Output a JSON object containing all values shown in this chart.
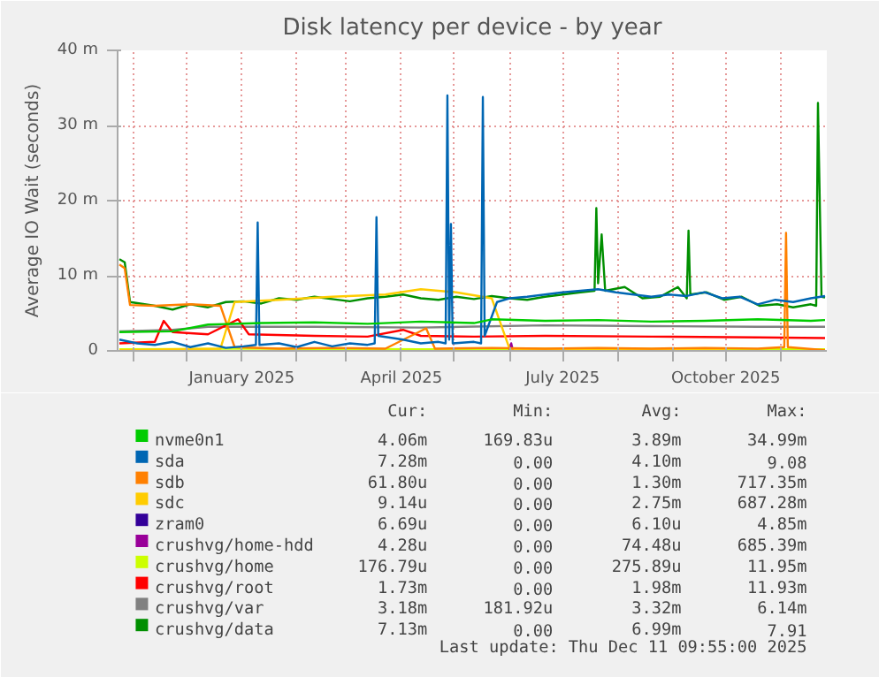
{
  "chart_data": {
    "type": "line",
    "title": "Disk latency per device - by year",
    "ylabel": "Average IO Wait (seconds)",
    "xlim": [
      "2024-10-23",
      "2025-11-27"
    ],
    "xticks": [
      {
        "value": "2024-11-01",
        "label": null
      },
      {
        "value": "2024-12-01",
        "label": null
      },
      {
        "value": "2025-01-01",
        "label": "January 2025"
      },
      {
        "value": "2025-02-01",
        "label": null
      },
      {
        "value": "2025-03-01",
        "label": null
      },
      {
        "value": "2025-04-01",
        "label": "April 2025"
      },
      {
        "value": "2025-05-01",
        "label": null
      },
      {
        "value": "2025-06-01",
        "label": null
      },
      {
        "value": "2025-07-01",
        "label": "July 2025"
      },
      {
        "value": "2025-08-01",
        "label": null
      },
      {
        "value": "2025-09-01",
        "label": null
      },
      {
        "value": "2025-10-01",
        "label": "October 2025"
      },
      {
        "value": "2025-11-01",
        "label": null
      }
    ],
    "ylim": [
      0,
      40
    ],
    "yticks": [
      0,
      {
        "value": 10,
        "label": "10 m"
      },
      {
        "value": 20,
        "label": "20 m"
      },
      {
        "value": 30,
        "label": "30 m"
      },
      {
        "value": 40,
        "label": "40 m"
      }
    ],
    "grid": true,
    "legend": "bottom",
    "line_style": "solid",
    "series": [
      {
        "name": "nvme0n1",
        "color": "#00cc00",
        "x": [
          "2024-10-24",
          "2024-11-23",
          "2024-12-13",
          "2025-01-12",
          "2025-02-11",
          "2025-03-13",
          "2025-04-12",
          "2025-05-12",
          "2025-05-22",
          "2025-06-21",
          "2025-07-21",
          "2025-08-20",
          "2025-09-19",
          "2025-10-19",
          "2025-11-18",
          "2025-11-26"
        ],
        "values": [
          2.5,
          2.6,
          3.5,
          3.7,
          3.8,
          3.6,
          3.9,
          3.7,
          4.2,
          4.0,
          4.1,
          3.9,
          4.0,
          4.2,
          4.0,
          4.1
        ]
      },
      {
        "name": "sda",
        "color": "#0066b3",
        "x": [
          "2024-10-24",
          "2024-11-03",
          "2024-11-13",
          "2024-11-23",
          "2024-12-03",
          "2024-12-13",
          "2024-12-23",
          "2025-01-02",
          "2025-01-09",
          "2025-01-10",
          "2025-01-11",
          "2025-01-22",
          "2025-02-01",
          "2025-02-11",
          "2025-02-21",
          "2025-03-03",
          "2025-03-13",
          "2025-03-17",
          "2025-03-18",
          "2025-03-19",
          "2025-04-02",
          "2025-04-12",
          "2025-04-22",
          "2025-04-26",
          "2025-04-27",
          "2025-04-28",
          "2025-04-29",
          "2025-04-30",
          "2025-05-12",
          "2025-05-16",
          "2025-05-17",
          "2025-05-18",
          "2025-05-25",
          "2025-06-01",
          "2025-06-11",
          "2025-06-21",
          "2025-07-01",
          "2025-07-11",
          "2025-07-21",
          "2025-07-31",
          "2025-08-10",
          "2025-08-20",
          "2025-08-30",
          "2025-09-09",
          "2025-09-19",
          "2025-09-29",
          "2025-10-09",
          "2025-10-19",
          "2025-10-29",
          "2025-11-08",
          "2025-11-18",
          "2025-11-26"
        ],
        "values": [
          1.5,
          1.0,
          0.8,
          1.2,
          0.5,
          1.0,
          0.4,
          0.6,
          0.8,
          17.1,
          0.8,
          1.0,
          0.5,
          1.2,
          0.6,
          1.0,
          0.8,
          1.0,
          17.8,
          2.0,
          1.5,
          1.0,
          1.2,
          1.0,
          34.0,
          1.5,
          16.9,
          1.0,
          1.2,
          1.0,
          33.8,
          2.0,
          6.5,
          7.0,
          7.2,
          7.5,
          7.8,
          8.0,
          8.2,
          7.8,
          7.5,
          7.2,
          7.5,
          7.3,
          7.8,
          7.0,
          7.2,
          6.2,
          6.8,
          6.5,
          7.0,
          7.3
        ]
      },
      {
        "name": "sdb",
        "color": "#ff8000",
        "x": [
          "2024-10-24",
          "2024-10-27",
          "2024-10-30",
          "2024-11-13",
          "2024-12-03",
          "2024-12-20",
          "2024-12-28",
          "2025-01-22",
          "2025-02-21",
          "2025-03-23",
          "2025-04-15",
          "2025-04-20",
          "2025-05-22",
          "2025-06-21",
          "2025-07-21",
          "2025-08-20",
          "2025-09-19",
          "2025-10-19",
          "2025-11-03",
          "2025-11-04",
          "2025-11-05",
          "2025-11-26"
        ],
        "values": [
          11.5,
          11.0,
          6.1,
          6.0,
          6.2,
          6.0,
          0.5,
          0.3,
          0.4,
          0.3,
          3.0,
          0.3,
          0.4,
          0.3,
          0.4,
          0.3,
          0.4,
          0.3,
          0.5,
          15.7,
          0.5,
          0.1
        ]
      },
      {
        "name": "sdc",
        "color": "#ffcc00",
        "x": [
          "2024-10-24",
          "2024-11-23",
          "2024-12-20",
          "2024-12-28",
          "2025-01-22",
          "2025-02-21",
          "2025-03-23",
          "2025-04-12",
          "2025-05-02",
          "2025-05-22",
          "2025-06-01",
          "2025-07-01",
          "2025-08-01",
          "2025-09-01",
          "2025-10-01"
        ],
        "values": [
          0.1,
          0.2,
          0.3,
          6.5,
          6.8,
          7.2,
          7.5,
          8.2,
          7.8,
          7.0,
          0.3,
          0.2,
          0.2,
          0.1,
          0.1
        ]
      },
      {
        "name": "zram0",
        "color": "#330099"
      },
      {
        "name": "crushvg/home-hdd",
        "color": "#990099",
        "x": [
          "2025-06-01",
          "2025-06-02",
          "2025-06-03"
        ],
        "values": [
          0,
          1.0,
          0
        ]
      },
      {
        "name": "crushvg/home",
        "color": "#ccff00",
        "x": [
          "2024-10-24",
          "2025-01-12",
          "2025-04-12",
          "2025-07-21",
          "2025-10-19",
          "2025-11-26"
        ],
        "values": [
          0.2,
          0.3,
          0.2,
          0.3,
          0.2,
          0.2
        ]
      },
      {
        "name": "crushvg/root",
        "color": "#ff0000",
        "x": [
          "2024-10-24",
          "2024-11-13",
          "2024-11-18",
          "2024-11-23",
          "2024-12-13",
          "2024-12-30",
          "2025-01-05",
          "2025-02-11",
          "2025-03-13",
          "2025-04-02",
          "2025-04-12",
          "2025-05-12",
          "2025-06-21",
          "2025-08-20",
          "2025-10-19",
          "2025-11-26"
        ],
        "values": [
          1.0,
          1.2,
          4.0,
          2.5,
          2.2,
          4.2,
          2.2,
          2.0,
          1.9,
          2.8,
          2.0,
          1.9,
          2.0,
          1.9,
          1.8,
          1.7
        ]
      },
      {
        "name": "crushvg/var",
        "color": "#808080",
        "x": [
          "2024-10-24",
          "2024-11-23",
          "2024-12-13",
          "2025-02-11",
          "2025-04-12",
          "2025-06-21",
          "2025-08-20",
          "2025-10-19",
          "2025-11-26"
        ],
        "values": [
          2.6,
          2.8,
          3.2,
          3.2,
          3.1,
          3.4,
          3.3,
          3.2,
          3.2
        ]
      },
      {
        "name": "crushvg/data",
        "color": "#008f00",
        "x": [
          "2024-10-24",
          "2024-10-27",
          "2024-10-30",
          "2024-11-13",
          "2024-11-23",
          "2024-12-03",
          "2024-12-13",
          "2024-12-23",
          "2025-01-02",
          "2025-01-12",
          "2025-01-22",
          "2025-02-01",
          "2025-02-11",
          "2025-02-21",
          "2025-03-03",
          "2025-03-13",
          "2025-03-23",
          "2025-04-02",
          "2025-04-12",
          "2025-04-22",
          "2025-05-02",
          "2025-05-12",
          "2025-05-22",
          "2025-06-01",
          "2025-06-11",
          "2025-06-21",
          "2025-07-01",
          "2025-07-11",
          "2025-07-19",
          "2025-07-20",
          "2025-07-21",
          "2025-07-23",
          "2025-07-25",
          "2025-08-05",
          "2025-08-15",
          "2025-08-25",
          "2025-09-04",
          "2025-09-09",
          "2025-09-10",
          "2025-09-11",
          "2025-09-20",
          "2025-09-30",
          "2025-10-10",
          "2025-10-20",
          "2025-10-30",
          "2025-11-08",
          "2025-11-18",
          "2025-11-21",
          "2025-11-22",
          "2025-11-24",
          "2025-11-26"
        ],
        "values": [
          12.2,
          11.8,
          6.5,
          6.0,
          5.5,
          6.2,
          5.8,
          6.5,
          6.6,
          6.3,
          7.0,
          6.8,
          7.2,
          6.9,
          6.6,
          7.0,
          7.2,
          7.5,
          7.0,
          6.8,
          7.2,
          6.9,
          7.3,
          7.0,
          6.8,
          7.2,
          7.5,
          7.8,
          8.0,
          19.0,
          9.0,
          15.5,
          8.0,
          8.5,
          7.0,
          7.2,
          8.5,
          7.0,
          16.0,
          7.5,
          7.8,
          6.8,
          7.2,
          6.0,
          6.2,
          5.8,
          6.2,
          6.0,
          33.0,
          7.2,
          7.1
        ]
      }
    ],
    "annotations": [
      "Cur:",
      "Min:",
      "Avg:",
      "Max:",
      "4.06m",
      "169.83u",
      "3.89m",
      "34.99m",
      "7.28m",
      "0.00",
      "4.10m",
      "9.08",
      "61.80u",
      "0.00",
      "1.30m",
      "717.35m",
      "9.14u",
      "0.00",
      "2.75m",
      "687.28m",
      "6.69u",
      "0.00",
      "6.10u",
      "4.85m",
      "4.28u",
      "0.00",
      "74.48u",
      "685.39m",
      "176.79u",
      "0.00",
      "275.89u",
      "11.95m",
      "1.73m",
      "0.00",
      "1.98m",
      "11.93m",
      "3.18m",
      "181.92u",
      "3.32m",
      "6.14m",
      "7.13m",
      "0.00",
      "6.99m",
      "7.91",
      "Last update: Thu Dec 11 09:55:00 2025"
    ]
  }
}
